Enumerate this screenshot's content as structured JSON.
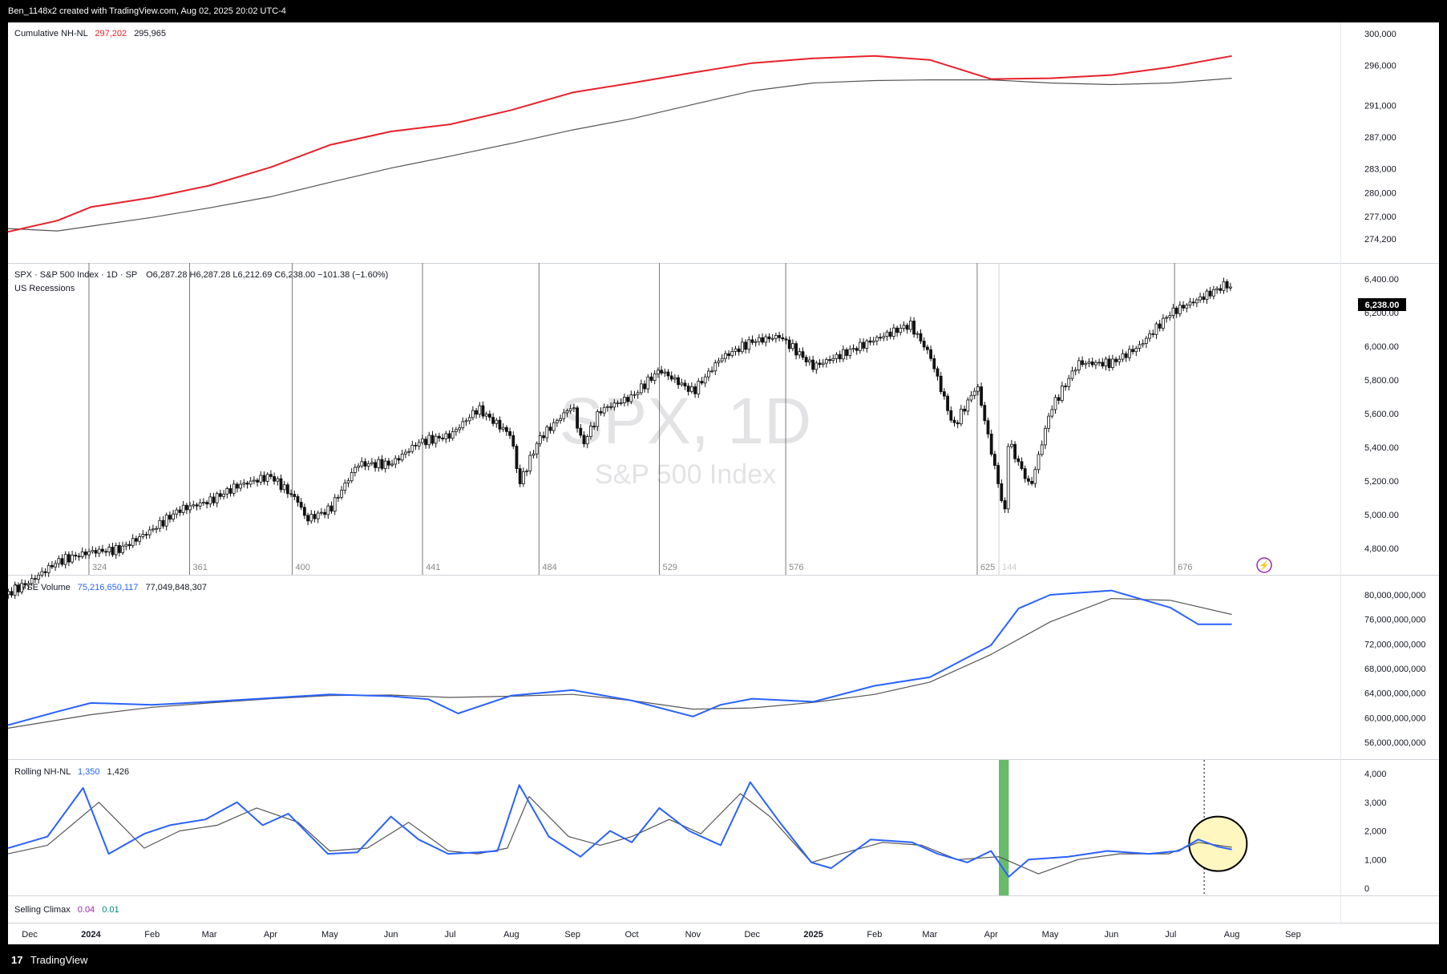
{
  "header": {
    "attribution": "Ben_1148x2 created with TradingView.com, Aug 02, 2025 20:02 UTC-4"
  },
  "footer": {
    "logo_glyph": "17",
    "brand": "TradingView"
  },
  "chart_data": {
    "type": "line",
    "x_axis": {
      "labels": [
        "Dec",
        "2024",
        "Feb",
        "Mar",
        "Apr",
        "May",
        "Jun",
        "Jul",
        "Aug",
        "Sep",
        "Oct",
        "Nov",
        "Dec",
        "2025",
        "Feb",
        "Mar",
        "Apr",
        "May",
        "Jun",
        "Jul",
        "Aug",
        "Sep"
      ],
      "bold_labels": [
        "2024",
        "2025"
      ]
    },
    "panes": [
      {
        "name": "Cumulative NH-NL",
        "legend": {
          "title": "Cumulative NH-NL",
          "value1": "297,202",
          "value2": "295,965"
        },
        "y_ticks": [
          "300,000",
          "296,000",
          "291,000",
          "287,000",
          "283,000",
          "280,000",
          "277,000",
          "274,200"
        ],
        "colors": {
          "main": "#e8202a",
          "signal": "#555555",
          "value1": "#e8202a"
        },
        "series": [
          {
            "name": "Cumulative NH-NL",
            "color": "#e8202a",
            "x": [
              "2023-11-20",
              "2023-12-15",
              "2024-01-01",
              "2024-02-01",
              "2024-03-01",
              "2024-04-01",
              "2024-05-01",
              "2024-06-01",
              "2024-07-01",
              "2024-08-01",
              "2024-09-01",
              "2024-10-01",
              "2024-11-01",
              "2024-12-01",
              "2025-01-01",
              "2025-02-01",
              "2025-03-01",
              "2025-04-01",
              "2025-05-01",
              "2025-06-01",
              "2025-07-01",
              "2025-08-01"
            ],
            "y": [
              275100,
              276500,
              278200,
              279400,
              280900,
              283200,
              286000,
              287700,
              288600,
              290400,
              292600,
              293800,
              295100,
              296300,
              296900,
              297200,
              296700,
              294300,
              294400,
              294800,
              295800,
              297200
            ]
          },
          {
            "name": "Signal",
            "color": "#555555",
            "x": [
              "2023-11-20",
              "2023-12-15",
              "2024-01-01",
              "2024-02-01",
              "2024-03-01",
              "2024-04-01",
              "2024-05-01",
              "2024-06-01",
              "2024-07-01",
              "2024-08-01",
              "2024-09-01",
              "2024-10-01",
              "2024-11-01",
              "2024-12-01",
              "2025-01-01",
              "2025-02-01",
              "2025-03-01",
              "2025-04-01",
              "2025-05-01",
              "2025-06-01",
              "2025-07-01",
              "2025-08-01"
            ],
            "y": [
              275500,
              275200,
              275800,
              276900,
              278100,
              279500,
              281300,
              283100,
              284600,
              286200,
              287900,
              289300,
              291100,
              292800,
              293800,
              294100,
              294200,
              294200,
              293800,
              293600,
              293800,
              294400
            ]
          }
        ]
      },
      {
        "name": "SPX",
        "legend": {
          "title": "SPX · S&P 500 Index · 1D · SP",
          "ohlc": "O6,287.28  H6,287.28  L6,212.69  C6,238.00  −101.38 (−1.60%)",
          "sub": "US Recessions"
        },
        "watermark": {
          "symbol": "SPX, 1D",
          "name": "S&P 500 Index"
        },
        "last_price": "6,238.00",
        "y_ticks": [
          "6,400.00",
          "6,200.00",
          "6,000.00",
          "5,800.00",
          "5,600.00",
          "5,400.00",
          "5,200.00",
          "5,000.00",
          "4,800.00"
        ],
        "bar_counts": [
          {
            "date": "2023-11-15",
            "label": ""
          },
          {
            "date": "2023-12-31",
            "label": "324"
          },
          {
            "date": "2024-02-20",
            "label": "361"
          },
          {
            "date": "2024-04-12",
            "label": "400"
          },
          {
            "date": "2024-06-17",
            "label": "441"
          },
          {
            "date": "2024-08-15",
            "label": "484"
          },
          {
            "date": "2024-10-15",
            "label": "529"
          },
          {
            "date": "2024-12-18",
            "label": "576"
          },
          {
            "date": "2025-03-25",
            "label": "625"
          },
          {
            "date": "2025-04-05",
            "label": "144"
          },
          {
            "date": "2025-07-03",
            "label": "676"
          }
        ],
        "series": [
          {
            "name": "SPX close",
            "color": "#111111",
            "x": [
              "2023-11-15",
              "2023-12-01",
              "2023-12-15",
              "2024-01-01",
              "2024-01-15",
              "2024-02-01",
              "2024-02-15",
              "2024-03-01",
              "2024-03-15",
              "2024-04-01",
              "2024-04-15",
              "2024-04-19",
              "2024-05-01",
              "2024-05-15",
              "2024-06-01",
              "2024-06-15",
              "2024-07-01",
              "2024-07-15",
              "2024-08-01",
              "2024-08-05",
              "2024-08-15",
              "2024-09-01",
              "2024-09-06",
              "2024-09-15",
              "2024-10-01",
              "2024-10-15",
              "2024-11-01",
              "2024-11-15",
              "2024-12-01",
              "2024-12-15",
              "2025-01-01",
              "2025-01-15",
              "2025-02-01",
              "2025-02-19",
              "2025-03-01",
              "2025-03-13",
              "2025-03-25",
              "2025-04-08",
              "2025-04-09",
              "2025-04-21",
              "2025-05-01",
              "2025-05-15",
              "2025-06-01",
              "2025-06-15",
              "2025-07-01",
              "2025-07-15",
              "2025-07-31",
              "2025-08-01"
            ],
            "y": [
              4500,
              4600,
              4720,
              4780,
              4790,
              4910,
              5030,
              5080,
              5170,
              5230,
              5080,
              4970,
              5030,
              5300,
              5300,
              5430,
              5470,
              5630,
              5470,
              5180,
              5450,
              5650,
              5410,
              5620,
              5700,
              5860,
              5730,
              5930,
              6030,
              6060,
              5880,
              5950,
              6040,
              6130,
              5950,
              5520,
              5770,
              5000,
              5450,
              5160,
              5620,
              5900,
              5900,
              6000,
              6200,
              6280,
              6380,
              6238
            ]
          }
        ]
      },
      {
        "name": "NYSE Volume",
        "legend": {
          "title": "NYSE Volume",
          "value1": "75,216,650,117",
          "value2": "77,049,848,307"
        },
        "y_ticks": [
          "80,000,000,000",
          "76,000,000,000",
          "72,000,000,000",
          "68,000,000,000",
          "64,000,000,000",
          "60,000,000,000",
          "56,000,000,000"
        ],
        "colors": {
          "main": "#2962ff",
          "signal": "#555555",
          "value1": "#2962ff"
        },
        "series": [
          {
            "name": "NYSE Volume",
            "color": "#2962ff",
            "x": [
              "2023-11-20",
              "2023-12-15",
              "2024-01-01",
              "2024-02-01",
              "2024-03-01",
              "2024-04-01",
              "2024-05-01",
              "2024-06-01",
              "2024-06-20",
              "2024-07-05",
              "2024-08-01",
              "2024-09-01",
              "2024-10-01",
              "2024-11-01",
              "2024-11-15",
              "2024-12-01",
              "2025-01-01",
              "2025-02-01",
              "2025-03-01",
              "2025-03-20",
              "2025-04-01",
              "2025-04-15",
              "2025-05-01",
              "2025-06-01",
              "2025-07-01",
              "2025-07-15",
              "2025-08-01"
            ],
            "y": [
              58800,
              61000,
              62400,
              62100,
              62600,
              63200,
              63800,
              63500,
              63000,
              60700,
              63600,
              64500,
              62800,
              60200,
              62100,
              63100,
              62600,
              65200,
              66600,
              69800,
              71800,
              77800,
              80000,
              80700,
              77900,
              75200,
              75200
            ]
          },
          {
            "name": "Signal",
            "color": "#555555",
            "x": [
              "2023-11-20",
              "2024-01-01",
              "2024-02-01",
              "2024-03-01",
              "2024-04-01",
              "2024-05-01",
              "2024-06-01",
              "2024-07-01",
              "2024-08-01",
              "2024-09-01",
              "2024-10-01",
              "2024-11-01",
              "2024-12-01",
              "2025-01-01",
              "2025-02-01",
              "2025-03-01",
              "2025-04-01",
              "2025-05-01",
              "2025-06-01",
              "2025-07-01",
              "2025-08-01"
            ],
            "y": [
              58300,
              60500,
              61700,
              62400,
              63100,
              63600,
              63700,
              63300,
              63500,
              63800,
              62800,
              61400,
              61600,
              62500,
              63800,
              65800,
              70300,
              75600,
              79400,
              79100,
              76800
            ]
          }
        ]
      },
      {
        "name": "Rolling NH-NL",
        "legend": {
          "title": "Rolling NH-NL",
          "value1": "1,350",
          "value2": "1,426"
        },
        "y_ticks": [
          "4,000",
          "3,000",
          "2,000",
          "1,000",
          "0"
        ],
        "colors": {
          "main": "#2962ff",
          "signal": "#555555",
          "value1": "#2962ff"
        },
        "highlight": {
          "from": "2025-04-05",
          "to": "2025-04-10",
          "color": "#4caf50"
        },
        "marker_date": "2025-07-18",
        "ellipse": {
          "date": "2025-07-25",
          "value": 1550,
          "fill": "#fff7bf"
        },
        "series": [
          {
            "name": "Rolling NH-NL",
            "color": "#2962ff",
            "x": [
              "2023-11-20",
              "2023-12-10",
              "2023-12-28",
              "2024-01-10",
              "2024-01-28",
              "2024-02-10",
              "2024-02-28",
              "2024-03-15",
              "2024-03-28",
              "2024-04-10",
              "2024-04-30",
              "2024-05-15",
              "2024-06-01",
              "2024-06-15",
              "2024-06-30",
              "2024-07-15",
              "2024-07-25",
              "2024-08-05",
              "2024-08-20",
              "2024-09-05",
              "2024-09-20",
              "2024-10-01",
              "2024-10-15",
              "2024-10-30",
              "2024-11-15",
              "2024-11-30",
              "2024-12-15",
              "2024-12-31",
              "2025-01-10",
              "2025-01-30",
              "2025-02-20",
              "2025-03-05",
              "2025-03-20",
              "2025-04-01",
              "2025-04-10",
              "2025-04-20",
              "2025-05-10",
              "2025-05-30",
              "2025-06-20",
              "2025-07-05",
              "2025-07-15",
              "2025-07-25",
              "2025-08-01"
            ],
            "y": [
              1400,
              1800,
              3500,
              1200,
              1900,
              2200,
              2400,
              3000,
              2200,
              2600,
              1200,
              1250,
              2500,
              1700,
              1200,
              1250,
              1300,
              3600,
              1800,
              1100,
              2000,
              1600,
              2800,
              2000,
              1500,
              3700,
              2300,
              900,
              700,
              1700,
              1600,
              1200,
              900,
              1300,
              400,
              1000,
              1100,
              1300,
              1200,
              1300,
              1700,
              1450,
              1350
            ]
          },
          {
            "name": "Signal",
            "color": "#555555",
            "x": [
              "2023-11-20",
              "2023-12-10",
              "2024-01-05",
              "2024-01-28",
              "2024-02-15",
              "2024-03-05",
              "2024-03-25",
              "2024-04-15",
              "2024-05-01",
              "2024-05-20",
              "2024-06-10",
              "2024-06-30",
              "2024-07-15",
              "2024-07-30",
              "2024-08-10",
              "2024-08-30",
              "2024-09-15",
              "2024-10-01",
              "2024-10-20",
              "2024-11-05",
              "2024-11-25",
              "2024-12-10",
              "2024-12-31",
              "2025-01-15",
              "2025-02-05",
              "2025-02-25",
              "2025-03-15",
              "2025-04-05",
              "2025-04-25",
              "2025-05-15",
              "2025-06-05",
              "2025-06-30",
              "2025-07-15",
              "2025-08-01"
            ],
            "y": [
              1200,
              1500,
              3000,
              1400,
              2000,
              2200,
              2800,
              2300,
              1300,
              1400,
              2300,
              1300,
              1200,
              1400,
              3200,
              1800,
              1500,
              1800,
              2400,
              1900,
              3300,
              2500,
              900,
              1200,
              1600,
              1500,
              1000,
              1100,
              500,
              1000,
              1200,
              1200,
              1600,
              1430
            ]
          }
        ]
      },
      {
        "name": "Selling Climax",
        "legend": {
          "title": "Selling Climax",
          "value1": "0.04",
          "value2": "0.01"
        },
        "colors": {
          "value1": "#9c27b0",
          "value2": "#00897b"
        }
      }
    ]
  }
}
